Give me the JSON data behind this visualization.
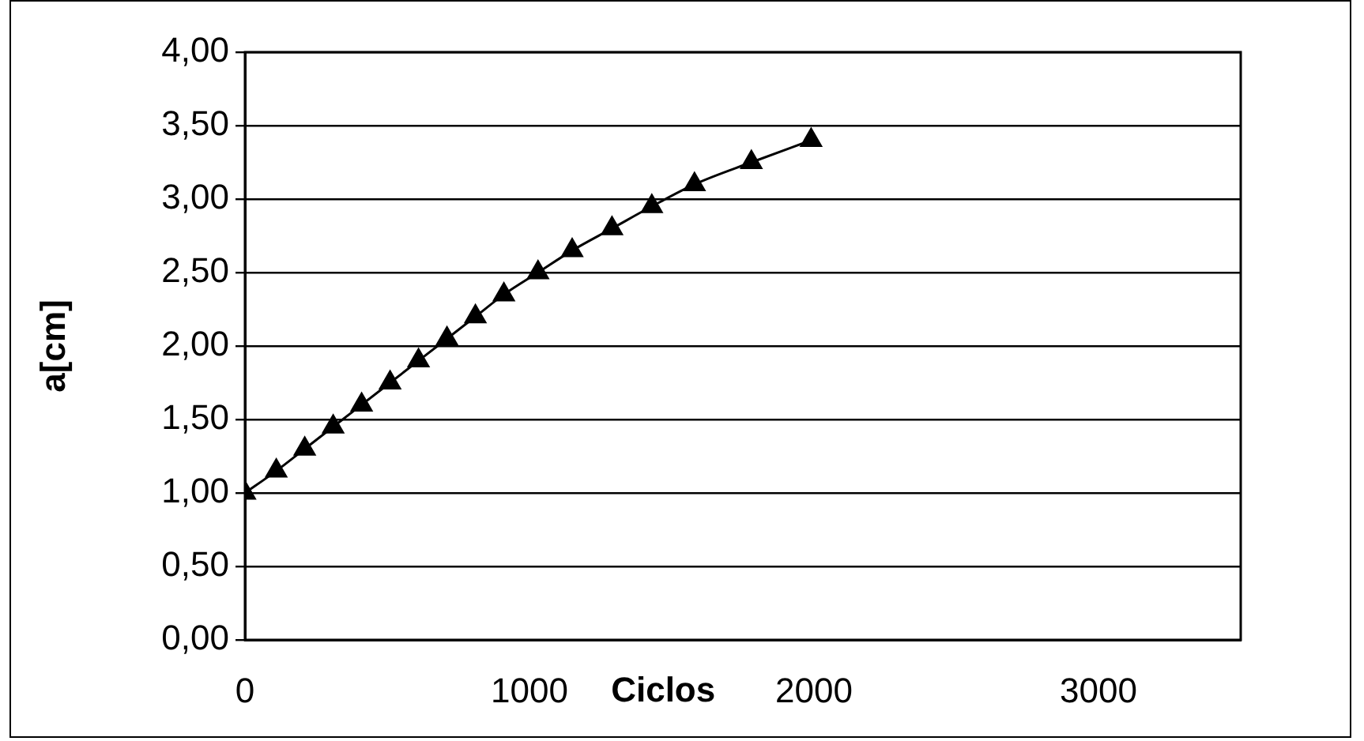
{
  "chart_data": {
    "type": "line",
    "xlabel": "Ciclos",
    "ylabel": "a[cm]",
    "x": [
      0,
      110,
      210,
      310,
      410,
      510,
      610,
      710,
      810,
      910,
      1030,
      1150,
      1290,
      1430,
      1580,
      1780,
      1990
    ],
    "series": [
      {
        "color": "#000000",
        "values": [
          1.0,
          1.15,
          1.3,
          1.45,
          1.6,
          1.75,
          1.9,
          2.05,
          2.2,
          2.35,
          2.5,
          2.65,
          2.8,
          2.95,
          3.1,
          3.25,
          3.4
        ]
      }
    ],
    "xlim": [
      0,
      3500
    ],
    "xticks": [
      0,
      1000,
      2000,
      3000
    ],
    "ylim": [
      0,
      4
    ],
    "yticks": [
      {
        "value": 0,
        "label": "0,00"
      },
      {
        "value": 0.5,
        "label": "0,50"
      },
      {
        "value": 1,
        "label": "1,00"
      },
      {
        "value": 1.5,
        "label": "1,50"
      },
      {
        "value": 2,
        "label": "2,00"
      },
      {
        "value": 2.5,
        "label": "2,50"
      },
      {
        "value": 3,
        "label": "3,00"
      },
      {
        "value": 3.5,
        "label": "3,50"
      },
      {
        "value": 4,
        "label": "4,00"
      }
    ],
    "grid": "y",
    "legend": false,
    "marker": "triangle",
    "line_style": "solid"
  }
}
